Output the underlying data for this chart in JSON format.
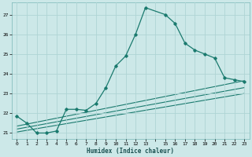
{
  "xlabel": "Humidex (Indice chaleur)",
  "bg_color": "#cce8e8",
  "grid_color": "#afd4d4",
  "line_color": "#1a7a6e",
  "xlim": [
    -0.5,
    23.5
  ],
  "ylim": [
    20.7,
    27.6
  ],
  "yticks": [
    21,
    22,
    23,
    24,
    25,
    26,
    27
  ],
  "xtick_labels": [
    "0",
    "1",
    "2",
    "3",
    "4",
    "5",
    "6",
    "7",
    "8",
    "9",
    "10",
    "11",
    "12",
    "13",
    "",
    "15",
    "16",
    "17",
    "18",
    "19",
    "20",
    "21",
    "22",
    "23"
  ],
  "xtick_positions": [
    0,
    1,
    2,
    3,
    4,
    5,
    6,
    7,
    8,
    9,
    10,
    11,
    12,
    13,
    14,
    15,
    16,
    17,
    18,
    19,
    20,
    21,
    22,
    23
  ],
  "line1_x": [
    0,
    1,
    2,
    3,
    4,
    5,
    6,
    7,
    8,
    9,
    10,
    11,
    12,
    13,
    15,
    16,
    17,
    18,
    19,
    20,
    21,
    22,
    23
  ],
  "line1_y": [
    21.85,
    21.5,
    21.0,
    21.0,
    21.1,
    22.2,
    22.2,
    22.15,
    22.5,
    23.3,
    24.4,
    24.9,
    26.0,
    27.35,
    27.0,
    26.55,
    25.55,
    25.2,
    25.0,
    24.8,
    23.8,
    23.7,
    23.6
  ],
  "line2_x": [
    0,
    23
  ],
  "line2_y": [
    21.35,
    23.65
  ],
  "line3_x": [
    0,
    23
  ],
  "line3_y": [
    21.2,
    23.3
  ],
  "line4_x": [
    0,
    23
  ],
  "line4_y": [
    21.05,
    23.0
  ]
}
